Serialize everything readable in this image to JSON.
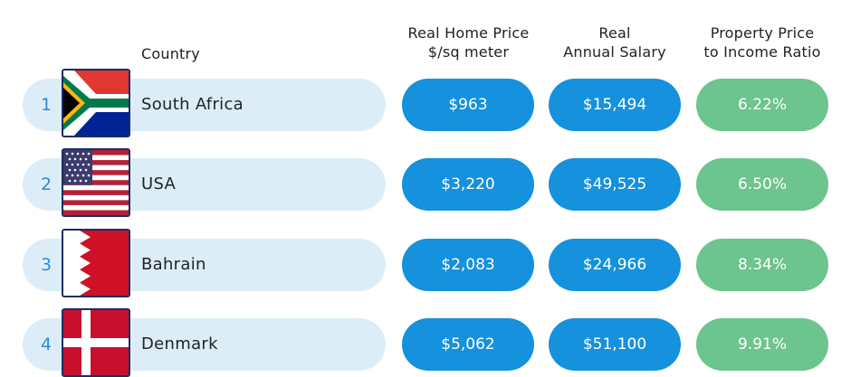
{
  "headers": {
    "country": "Country",
    "price_line1": "Real Home Price",
    "price_line2": "$/sq meter",
    "salary_line1": "Real",
    "salary_line2": "Annual Salary",
    "ratio_line1": "Property Price",
    "ratio_line2": "to Income Ratio"
  },
  "colors": {
    "row_bg": "#dcedf8",
    "pill_blue": "#1591dd",
    "pill_green": "#6cc48e",
    "rank_text": "#2a8fd6"
  },
  "rows": [
    {
      "rank": "1",
      "country": "South Africa",
      "flag": "south-africa-flag-icon",
      "price": "$963",
      "salary": "$15,494",
      "ratio": "6.22%"
    },
    {
      "rank": "2",
      "country": "USA",
      "flag": "usa-flag-icon",
      "price": "$3,220",
      "salary": "$49,525",
      "ratio": "6.50%"
    },
    {
      "rank": "3",
      "country": "Bahrain",
      "flag": "bahrain-flag-icon",
      "price": "$2,083",
      "salary": "$24,966",
      "ratio": "8.34%"
    },
    {
      "rank": "4",
      "country": "Denmark",
      "flag": "denmark-flag-icon",
      "price": "$5,062",
      "salary": "$51,100",
      "ratio": "9.91%"
    }
  ]
}
